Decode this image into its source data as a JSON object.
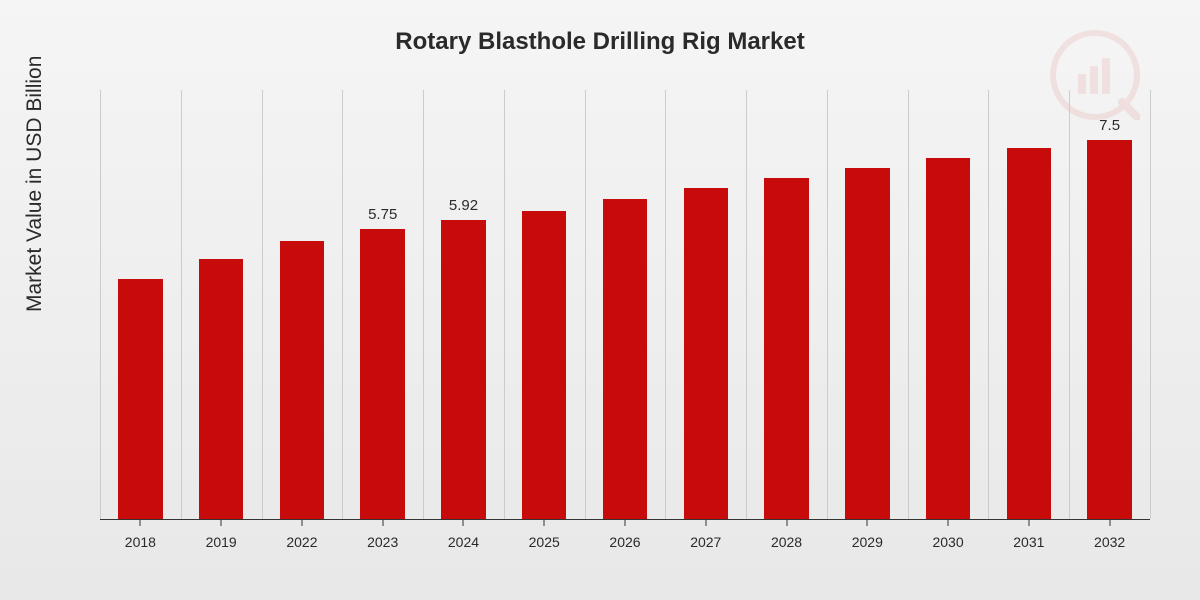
{
  "chart": {
    "type": "bar",
    "title": "Rotary Blasthole Drilling Rig Market",
    "title_fontsize": 24,
    "ylabel": "Market Value in USD Billion",
    "ylabel_fontsize": 21,
    "background_gradient": [
      "#f5f5f5",
      "#e8e8e8"
    ],
    "bar_color": "#c70a0a",
    "gridline_color": "#cccccc",
    "axis_color": "#333333",
    "text_color": "#2a2a2a",
    "categories": [
      "2018",
      "2019",
      "2022",
      "2023",
      "2024",
      "2025",
      "2026",
      "2027",
      "2028",
      "2029",
      "2030",
      "2031",
      "2032"
    ],
    "values": [
      4.75,
      5.15,
      5.5,
      5.75,
      5.92,
      6.1,
      6.35,
      6.55,
      6.75,
      6.95,
      7.15,
      7.35,
      7.5
    ],
    "value_labels": [
      "",
      "",
      "",
      "5.75",
      "5.92",
      "",
      "",
      "",
      "",
      "",
      "",
      "",
      "7.5"
    ],
    "ylim": [
      0,
      8.5
    ],
    "bar_width_ratio": 0.55,
    "value_label_fontsize": 15,
    "xlabel_fontsize": 14
  }
}
